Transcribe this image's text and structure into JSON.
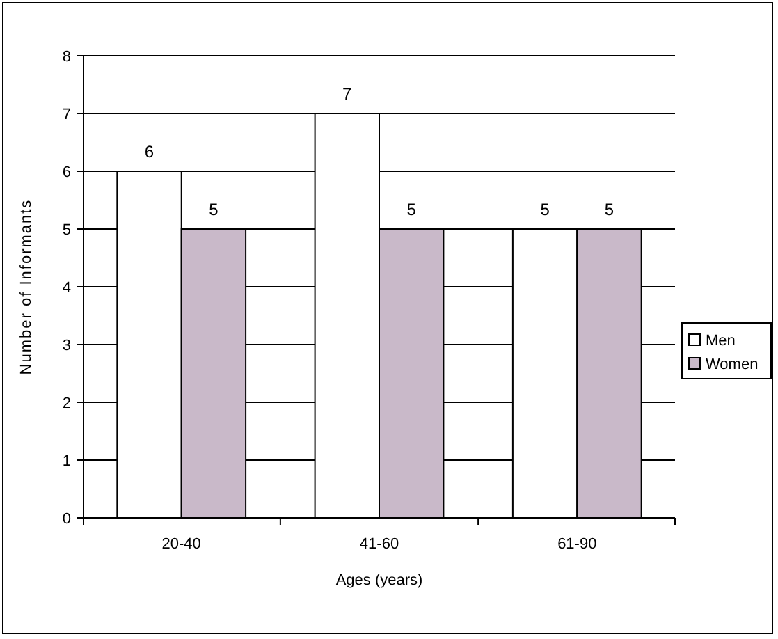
{
  "chart_data": {
    "type": "bar",
    "xlabel": "Ages (years)",
    "ylabel": "Number of Informants",
    "categories": [
      "20-40",
      "41-60",
      "61-90"
    ],
    "series": [
      {
        "name": "Men",
        "color": "#ffffff",
        "values": [
          6,
          7,
          5
        ]
      },
      {
        "name": "Women",
        "color": "#c9b9c9",
        "values": [
          5,
          5,
          5
        ]
      }
    ],
    "ylim": [
      0,
      8
    ],
    "yticks": [
      0,
      1,
      2,
      3,
      4,
      5,
      6,
      7,
      8
    ],
    "grid": "y",
    "legend": "right",
    "data_labels": true
  }
}
